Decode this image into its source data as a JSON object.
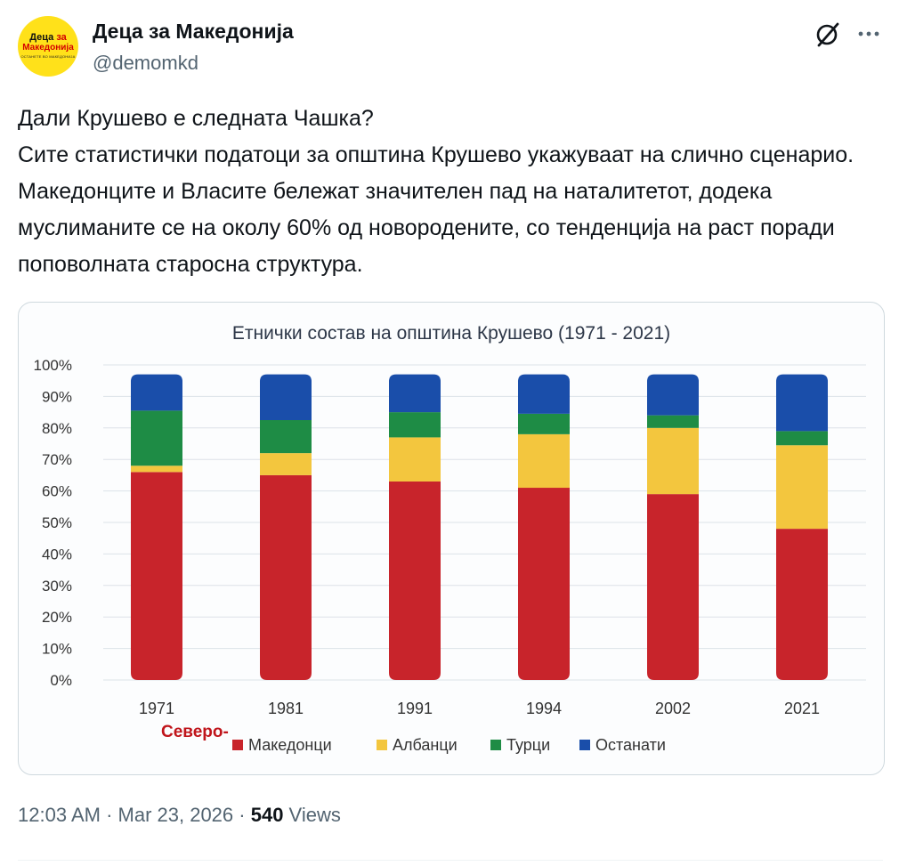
{
  "author": {
    "display_name": "Деца за Македонија",
    "handle": "@demomkd",
    "avatar": {
      "line1_a": "Деца ",
      "line1_b": "за",
      "line2": "Македонија",
      "line3": "ОСТАНЕТЕ ВО МАКЕДОНИЈА"
    }
  },
  "tweet": {
    "paragraphs": [
      "Дали Крушево е следната Чашка?",
      "Сите статистички податоци за општина Крушево укажуваат на слично сценарио. Македонците и Власите бележат значителен пад на наталитетот, додека муслиманите се на околу 60% од новородените, со тенденција на раст поради поповолната староснa структура."
    ]
  },
  "meta": {
    "time": "12:03 AM",
    "sep1": " · ",
    "date": "Mar 23, 2026",
    "sep2": " · ",
    "views_count": "540",
    "views_label": " Views"
  },
  "icons": {
    "grok": "grok-icon",
    "more": "more-icon"
  },
  "chart_data": {
    "type": "bar",
    "stacked": true,
    "title": "Етнички состав на општина Крушево (1971 - 2021)",
    "categories": [
      "1971",
      "1981",
      "1991",
      "1994",
      "2002",
      "2021"
    ],
    "y_ticks": [
      "0%",
      "10%",
      "20%",
      "30%",
      "40%",
      "50%",
      "60%",
      "70%",
      "80%",
      "90%",
      "100%"
    ],
    "ylim": [
      0,
      100
    ],
    "grid": true,
    "legend_position": "bottom",
    "annotation": "Северо-",
    "series": [
      {
        "name": "Македонци",
        "color": "#c8242b",
        "values": [
          66,
          65,
          63,
          61,
          59,
          48
        ]
      },
      {
        "name": "Албанци",
        "color": "#f3c63e",
        "values": [
          2,
          7,
          14,
          17,
          21,
          26.5
        ]
      },
      {
        "name": "Турци",
        "color": "#1e8c45",
        "values": [
          17.5,
          10.5,
          8,
          6.5,
          4,
          4.5
        ]
      },
      {
        "name": "Останати",
        "color": "#1a4eaa",
        "values": [
          11.5,
          14.5,
          12,
          12.5,
          13,
          18
        ]
      }
    ]
  }
}
